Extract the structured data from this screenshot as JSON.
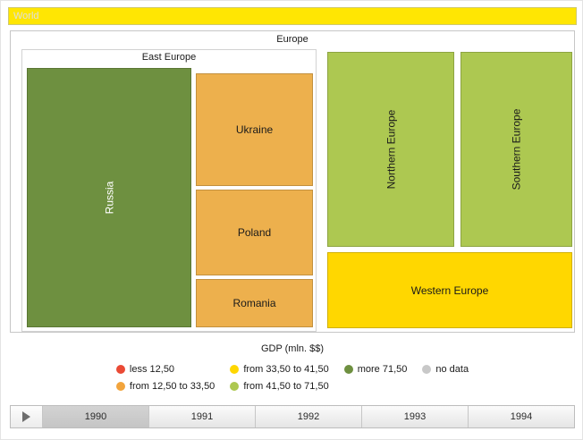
{
  "world_node": {
    "label": "World",
    "color": "#ffe603"
  },
  "treemap": {
    "europe_label": "Europe",
    "east_europe_label": "East Europe",
    "cells": {
      "russia": {
        "label": "Russia",
        "color": "#6e9040"
      },
      "ukraine": {
        "label": "Ukraine",
        "color": "#edb04d"
      },
      "poland": {
        "label": "Poland",
        "color": "#edb04d"
      },
      "romania": {
        "label": "Romania",
        "color": "#edb04d"
      },
      "northern": {
        "label": "Northern Europe",
        "color": "#adc851"
      },
      "southern": {
        "label": "Southern Europe",
        "color": "#adc851"
      },
      "western": {
        "label": "Western Europe",
        "color": "#ffd700"
      }
    }
  },
  "legend": {
    "title": "GDP (mln. $$)",
    "items": [
      {
        "label": "less 12,50",
        "color": "#ea4a35"
      },
      {
        "label": "from 33,50 to 41,50",
        "color": "#ffd700"
      },
      {
        "label": "more 71,50",
        "color": "#6e9040"
      },
      {
        "label": "no data",
        "color": "#c8c8c8"
      },
      {
        "label": "from 12,50 to 33,50",
        "color": "#f2a43c"
      },
      {
        "label": "from 41,50 to 71,50",
        "color": "#adc851"
      }
    ]
  },
  "timeline": {
    "years": [
      "1990",
      "1991",
      "1992",
      "1993",
      "1994"
    ],
    "selected_year": "1990"
  },
  "chart_data": {
    "type": "treemap",
    "title": "GDP (mln. $$)",
    "root": "World",
    "year_shown": "1990",
    "nodes": [
      {
        "name": "Europe",
        "parent": "World"
      },
      {
        "name": "East Europe",
        "parent": "Europe"
      },
      {
        "name": "Russia",
        "parent": "East Europe",
        "gdp_bin": "more 71,50"
      },
      {
        "name": "Ukraine",
        "parent": "East Europe",
        "gdp_bin": "from 12,50 to 33,50"
      },
      {
        "name": "Poland",
        "parent": "East Europe",
        "gdp_bin": "from 12,50 to 33,50"
      },
      {
        "name": "Romania",
        "parent": "East Europe",
        "gdp_bin": "from 12,50 to 33,50"
      },
      {
        "name": "Northern Europe",
        "parent": "Europe",
        "gdp_bin": "from 41,50 to 71,50"
      },
      {
        "name": "Southern Europe",
        "parent": "Europe",
        "gdp_bin": "from 41,50 to 71,50"
      },
      {
        "name": "Western Europe",
        "parent": "Europe",
        "gdp_bin": "from 33,50 to 41,50"
      }
    ],
    "legend_bins": [
      "less 12,50",
      "from 12,50 to 33,50",
      "from 33,50 to 41,50",
      "from 41,50 to 71,50",
      "more 71,50",
      "no data"
    ],
    "timeline_years": [
      "1990",
      "1991",
      "1992",
      "1993",
      "1994"
    ]
  }
}
